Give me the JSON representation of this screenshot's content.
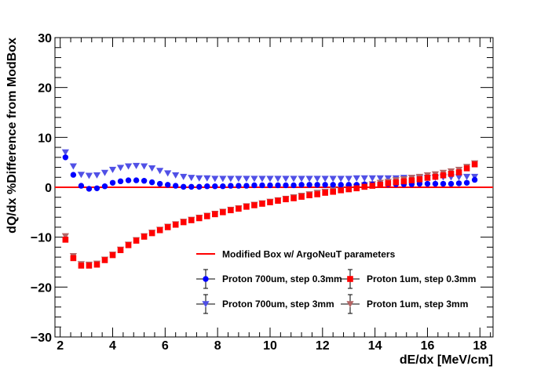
{
  "chart_data": {
    "type": "scatter",
    "title": "",
    "xlabel": "dE/dx [MeV/cm]",
    "ylabel": "dQ/dx %Difference from ModBox",
    "xlim": [
      1.8,
      18.5
    ],
    "ylim": [
      -30,
      30
    ],
    "x_ticks": [
      2,
      4,
      6,
      8,
      10,
      12,
      14,
      16,
      18
    ],
    "y_ticks": [
      -30,
      -20,
      -10,
      0,
      10,
      20,
      30
    ],
    "grid": false,
    "legend_position": "bottom-right",
    "reference_line": {
      "name": "Modified Box w/ ArgoNeuT parameters",
      "y": 0,
      "color": "#ff0000"
    },
    "x": [
      2.2,
      2.5,
      2.8,
      3.1,
      3.4,
      3.7,
      4.0,
      4.3,
      4.6,
      4.9,
      5.2,
      5.5,
      5.8,
      6.1,
      6.4,
      6.7,
      7.0,
      7.3,
      7.6,
      7.9,
      8.2,
      8.5,
      8.8,
      9.1,
      9.4,
      9.7,
      10.0,
      10.3,
      10.6,
      10.9,
      11.2,
      11.5,
      11.8,
      12.1,
      12.4,
      12.7,
      13.0,
      13.3,
      13.6,
      13.9,
      14.2,
      14.5,
      14.8,
      15.1,
      15.4,
      15.7,
      16.0,
      16.3,
      16.6,
      16.9,
      17.2,
      17.5,
      17.8
    ],
    "series": [
      {
        "name": "Proton 700um, step 0.3mm",
        "marker": "circle",
        "color": "#0000ff",
        "values": [
          6.0,
          2.5,
          0.3,
          -0.3,
          -0.2,
          0.2,
          0.9,
          1.2,
          1.4,
          1.4,
          1.3,
          1.0,
          0.7,
          0.5,
          0.3,
          0.1,
          0.1,
          0.1,
          0.2,
          0.2,
          0.2,
          0.3,
          0.3,
          0.3,
          0.4,
          0.4,
          0.4,
          0.4,
          0.4,
          0.4,
          0.5,
          0.5,
          0.5,
          0.5,
          0.5,
          0.5,
          0.5,
          0.5,
          0.6,
          0.6,
          0.6,
          0.6,
          0.6,
          0.6,
          0.6,
          0.7,
          0.7,
          0.7,
          0.7,
          0.7,
          0.8,
          0.9,
          1.5
        ]
      },
      {
        "name": "Proton 700um, step 3mm",
        "marker": "triangle-down",
        "color": "#5050e6",
        "values": [
          7.0,
          4.2,
          2.5,
          2.3,
          2.4,
          2.9,
          3.5,
          3.9,
          4.2,
          4.3,
          4.2,
          3.8,
          3.3,
          2.8,
          2.4,
          2.1,
          1.9,
          1.8,
          1.8,
          1.7,
          1.7,
          1.7,
          1.7,
          1.7,
          1.7,
          1.7,
          1.7,
          1.7,
          1.7,
          1.7,
          1.7,
          1.7,
          1.7,
          1.7,
          1.7,
          1.7,
          1.7,
          1.8,
          1.8,
          1.8,
          1.8,
          1.8,
          1.8,
          1.9,
          1.9,
          1.9,
          1.9,
          1.9,
          2.0,
          2.0,
          2.0,
          2.1,
          2.1
        ]
      },
      {
        "name": "Proton 1um, step 0.3mm",
        "marker": "square",
        "color": "#ff0000",
        "values": [
          -10.5,
          -14.2,
          -15.7,
          -15.7,
          -15.5,
          -14.6,
          -13.6,
          -12.6,
          -11.6,
          -10.7,
          -9.9,
          -9.2,
          -8.6,
          -8.0,
          -7.5,
          -7.0,
          -6.6,
          -6.2,
          -5.8,
          -5.4,
          -5.0,
          -4.6,
          -4.3,
          -3.9,
          -3.6,
          -3.3,
          -3.0,
          -2.7,
          -2.4,
          -2.2,
          -1.9,
          -1.6,
          -1.4,
          -1.1,
          -0.9,
          -0.6,
          -0.4,
          -0.2,
          0.1,
          0.3,
          0.5,
          0.8,
          1.0,
          1.2,
          1.4,
          1.6,
          1.9,
          2.1,
          2.4,
          2.7,
          3.0,
          3.8,
          4.6
        ]
      },
      {
        "name": "Proton 1um, step 3mm",
        "marker": "triangle-down",
        "color": "#b46464",
        "values": [
          -9.8,
          -13.8,
          -15.4,
          -15.5,
          -15.3,
          -14.5,
          -13.5,
          -12.5,
          -11.5,
          -10.6,
          -9.8,
          -9.1,
          -8.5,
          -7.9,
          -7.4,
          -6.9,
          -6.5,
          -6.1,
          -5.7,
          -5.3,
          -4.9,
          -4.5,
          -4.2,
          -3.8,
          -3.5,
          -3.2,
          -2.9,
          -2.6,
          -2.3,
          -2.0,
          -1.7,
          -1.4,
          -1.1,
          -0.9,
          -0.6,
          -0.4,
          -0.1,
          0.1,
          0.4,
          0.6,
          0.9,
          1.1,
          1.4,
          1.6,
          1.9,
          2.1,
          2.4,
          2.6,
          2.9,
          3.2,
          3.5,
          4.1,
          4.8
        ]
      }
    ]
  }
}
